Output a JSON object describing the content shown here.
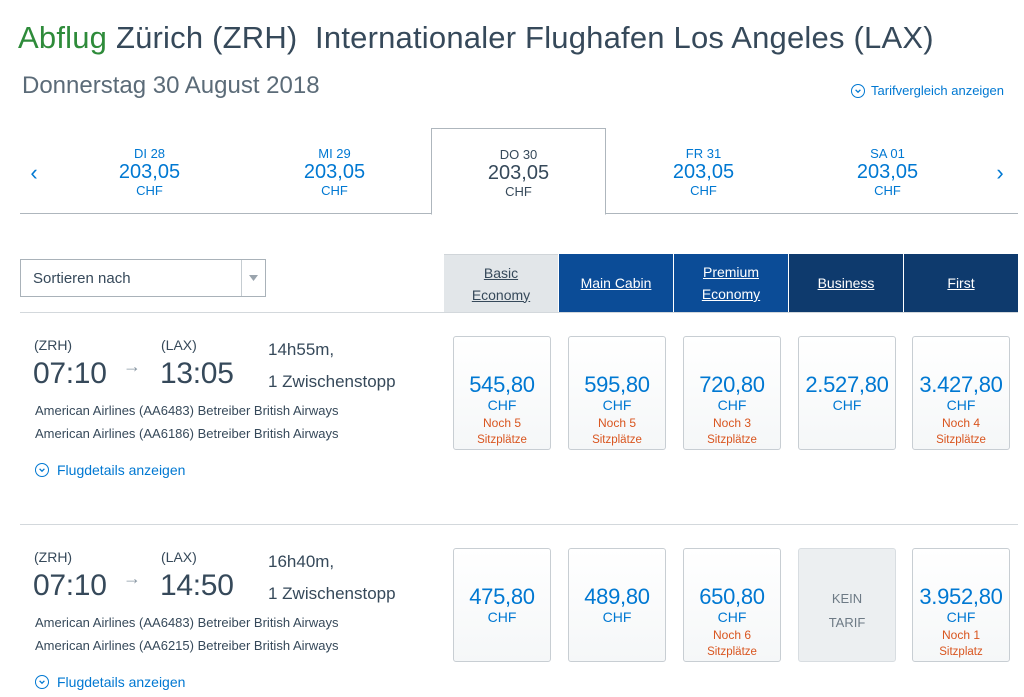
{
  "header": {
    "title_prefix": "Abflug",
    "title_rest": "Zürich (ZRH)  Internationaler Flughafen Los Angeles (LAX)",
    "date": "Donnerstag 30 August 2018",
    "compare_link": "Tarifvergleich anzeigen"
  },
  "date_bar": {
    "prev_icon": "‹",
    "next_icon": "›",
    "days": [
      {
        "day": "DI 28",
        "price": "203,05",
        "currency": "CHF"
      },
      {
        "day": "MI 29",
        "price": "203,05",
        "currency": "CHF"
      },
      {
        "day": "DO 30",
        "price": "203,05",
        "currency": "CHF"
      },
      {
        "day": "FR 31",
        "price": "203,05",
        "currency": "CHF"
      },
      {
        "day": "SA 01",
        "price": "203,05",
        "currency": "CHF"
      }
    ]
  },
  "sort": {
    "label": "Sortieren nach"
  },
  "cabins": [
    {
      "line1": "Basic",
      "line2": "Economy"
    },
    {
      "line1": "Main Cabin",
      "line2": ""
    },
    {
      "line1": "Premium",
      "line2": "Economy"
    },
    {
      "line1": "Business",
      "line2": ""
    },
    {
      "line1": "First",
      "line2": ""
    }
  ],
  "flights": [
    {
      "origin_code": "(ZRH)",
      "dest_code": "(LAX)",
      "dep_time": "07:10",
      "arr_time": "13:05",
      "duration": "14h55m,",
      "stops": "1 Zwischenstopp",
      "carrier1": "American Airlines (AA6483) Betreiber British Airways",
      "carrier2": "American Airlines (AA6186) Betreiber British Airways",
      "details_link": "Flugdetails anzeigen",
      "fares": [
        {
          "amount": "545,80",
          "currency": "CHF",
          "seats1": "Noch 5",
          "seats2": "Sitzplätze"
        },
        {
          "amount": "595,80",
          "currency": "CHF",
          "seats1": "Noch 5",
          "seats2": "Sitzplätze"
        },
        {
          "amount": "720,80",
          "currency": "CHF",
          "seats1": "Noch 3",
          "seats2": "Sitzplätze"
        },
        {
          "amount": "2.527,80",
          "currency": "CHF",
          "seats1": "",
          "seats2": ""
        },
        {
          "amount": "3.427,80",
          "currency": "CHF",
          "seats1": "Noch 4",
          "seats2": "Sitzplätze"
        }
      ]
    },
    {
      "origin_code": "(ZRH)",
      "dest_code": "(LAX)",
      "dep_time": "07:10",
      "arr_time": "14:50",
      "duration": "16h40m,",
      "stops": "1 Zwischenstopp",
      "carrier1": "American Airlines (AA6483) Betreiber British Airways",
      "carrier2": "American Airlines (AA6215) Betreiber British Airways",
      "details_link": "Flugdetails anzeigen",
      "fares": [
        {
          "amount": "475,80",
          "currency": "CHF",
          "seats1": "",
          "seats2": ""
        },
        {
          "amount": "489,80",
          "currency": "CHF",
          "seats1": "",
          "seats2": ""
        },
        {
          "amount": "650,80",
          "currency": "CHF",
          "seats1": "Noch 6",
          "seats2": "Sitzplätze"
        },
        {
          "kein1": "KEIN",
          "kein2": "TARIF"
        },
        {
          "amount": "3.952,80",
          "currency": "CHF",
          "seats1": "Noch 1",
          "seats2": "Sitzplatz"
        }
      ]
    }
  ]
}
